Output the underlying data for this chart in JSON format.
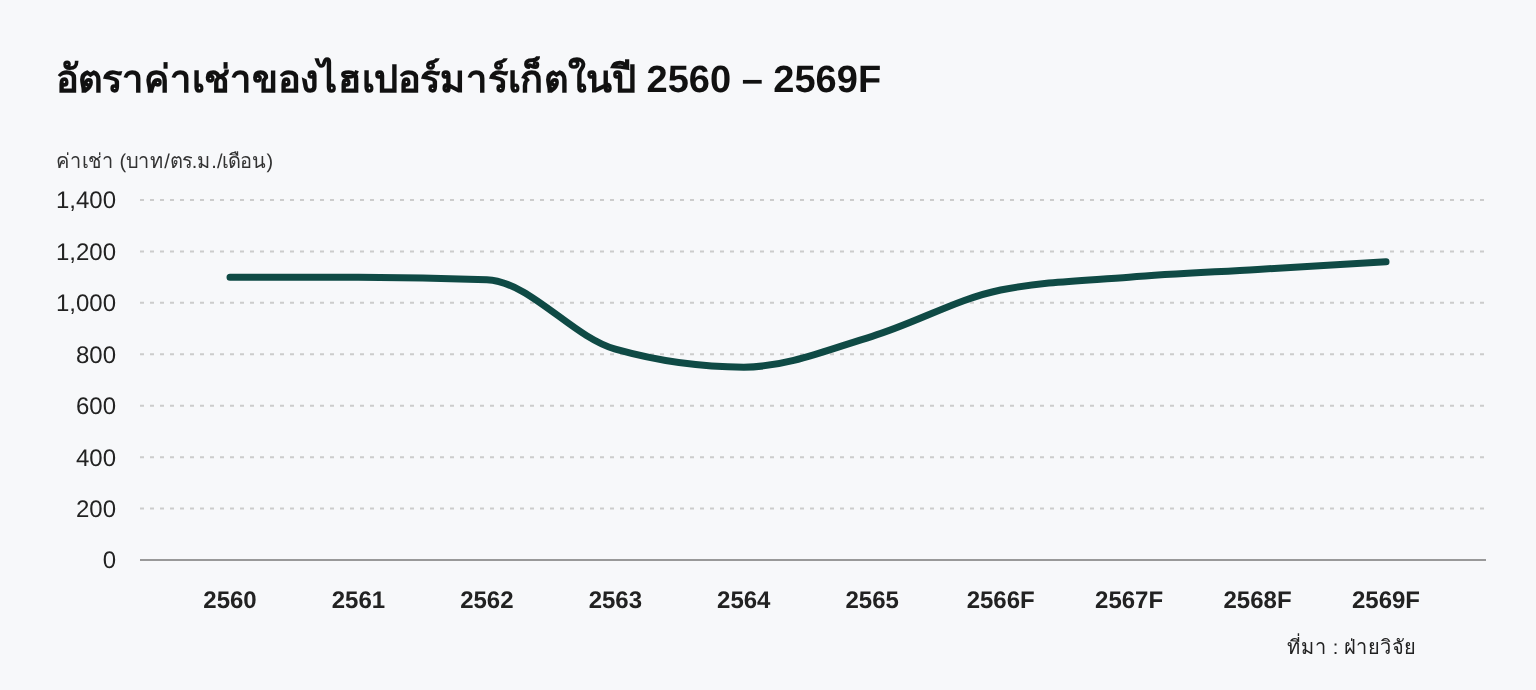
{
  "chart_data": {
    "type": "line",
    "title": "อัตราค่าเช่าของไฮเปอร์มาร์เก็ตในปี 2560 – 2569F",
    "ylabel": "ค่าเช่า (บาท/ตร.ม./เดือน)",
    "categories": [
      "2560",
      "2561",
      "2562",
      "2563",
      "2564",
      "2565",
      "2566F",
      "2567F",
      "2568F",
      "2569F"
    ],
    "series": [
      {
        "color": "#0f4a45",
        "values": [
          1100,
          1100,
          1090,
          820,
          750,
          870,
          1050,
          1100,
          1130,
          1160
        ]
      }
    ],
    "ylim": [
      0,
      1400
    ],
    "yticks": [
      0,
      {
        "value": 200,
        "label": "200"
      },
      {
        "value": 400,
        "label": "400"
      },
      {
        "value": 600,
        "label": "600"
      },
      {
        "value": 800,
        "label": "800"
      },
      {
        "value": 1000,
        "label": "1,000"
      },
      {
        "value": 1200,
        "label": "1,200"
      },
      {
        "value": 1400,
        "label": "1,400"
      }
    ],
    "grid": "y",
    "marker": "none",
    "line_style": "solid",
    "annotations": [
      "ที่มา : ฝ่ายวิจัย"
    ]
  }
}
